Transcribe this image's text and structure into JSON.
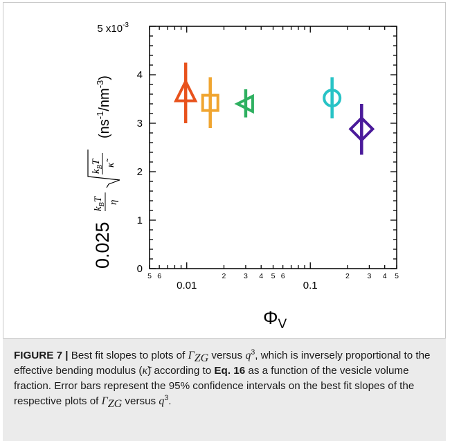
{
  "chart_data": {
    "type": "scatter",
    "x_scale": "log",
    "xlim": [
      0.005,
      0.5
    ],
    "ylim": [
      0,
      5
    ],
    "y_multiplier_label": "5 x10",
    "y_multiplier_exp": "-3",
    "xlabel_symbol": "Φ",
    "xlabel_sub": "V",
    "ylabel_prefix": "0.025",
    "ylabel_units": "(ns",
    "ylabel_units_rest": "/nm",
    "yticks": [
      0,
      1,
      2,
      3,
      4
    ],
    "yticks_minor_labels": [],
    "xtick_labels": [
      {
        "x": 0.005,
        "label": "5"
      },
      {
        "x": 0.006,
        "label": "6"
      },
      {
        "x": 0.01,
        "label": "0.01"
      },
      {
        "x": 0.02,
        "label": "2"
      },
      {
        "x": 0.03,
        "label": "3"
      },
      {
        "x": 0.04,
        "label": "4"
      },
      {
        "x": 0.05,
        "label": "5"
      },
      {
        "x": 0.06,
        "label": "6"
      },
      {
        "x": 0.1,
        "label": "0.1"
      },
      {
        "x": 0.2,
        "label": "2"
      },
      {
        "x": 0.3,
        "label": "3"
      },
      {
        "x": 0.4,
        "label": "4"
      },
      {
        "x": 0.5,
        "label": "5"
      }
    ],
    "series": [
      {
        "marker": "triangle-up",
        "color": "#e8521c",
        "x": 0.0098,
        "y": 3.62,
        "y_low": 3.0,
        "y_high": 4.25
      },
      {
        "marker": "square",
        "color": "#f0a530",
        "x": 0.0155,
        "y": 3.42,
        "y_low": 2.9,
        "y_high": 3.95
      },
      {
        "marker": "triangle-left",
        "color": "#2eb060",
        "x": 0.03,
        "y": 3.4,
        "y_low": 3.12,
        "y_high": 3.7
      },
      {
        "marker": "circle",
        "color": "#28c3c6",
        "x": 0.15,
        "y": 3.52,
        "y_low": 3.1,
        "y_high": 3.95
      },
      {
        "marker": "diamond",
        "color": "#4a1a9a",
        "x": 0.26,
        "y": 2.88,
        "y_low": 2.35,
        "y_high": 3.4
      }
    ]
  },
  "caption": {
    "label": "FIGURE 7 |",
    "t1": " Best fit slopes to plots of ",
    "gamma": "Γ",
    "zg": "ZG",
    "t2": " versus ",
    "q": "q",
    "three": "3",
    "t3": ", which is inversely proportional to the effective bending modulus (",
    "kappa": "κ̃",
    "t4": ") according to ",
    "eq": "Eq. 16",
    "t5": " as a function of the vesicle volume fraction. Error bars represent the 95% confidence intervals on the best fit slopes of the respective plots of ",
    "gamma2": "Γ",
    "zg2": "ZG",
    "t6": " versus ",
    "q2": "q",
    "three2": "3",
    "t7": "."
  }
}
